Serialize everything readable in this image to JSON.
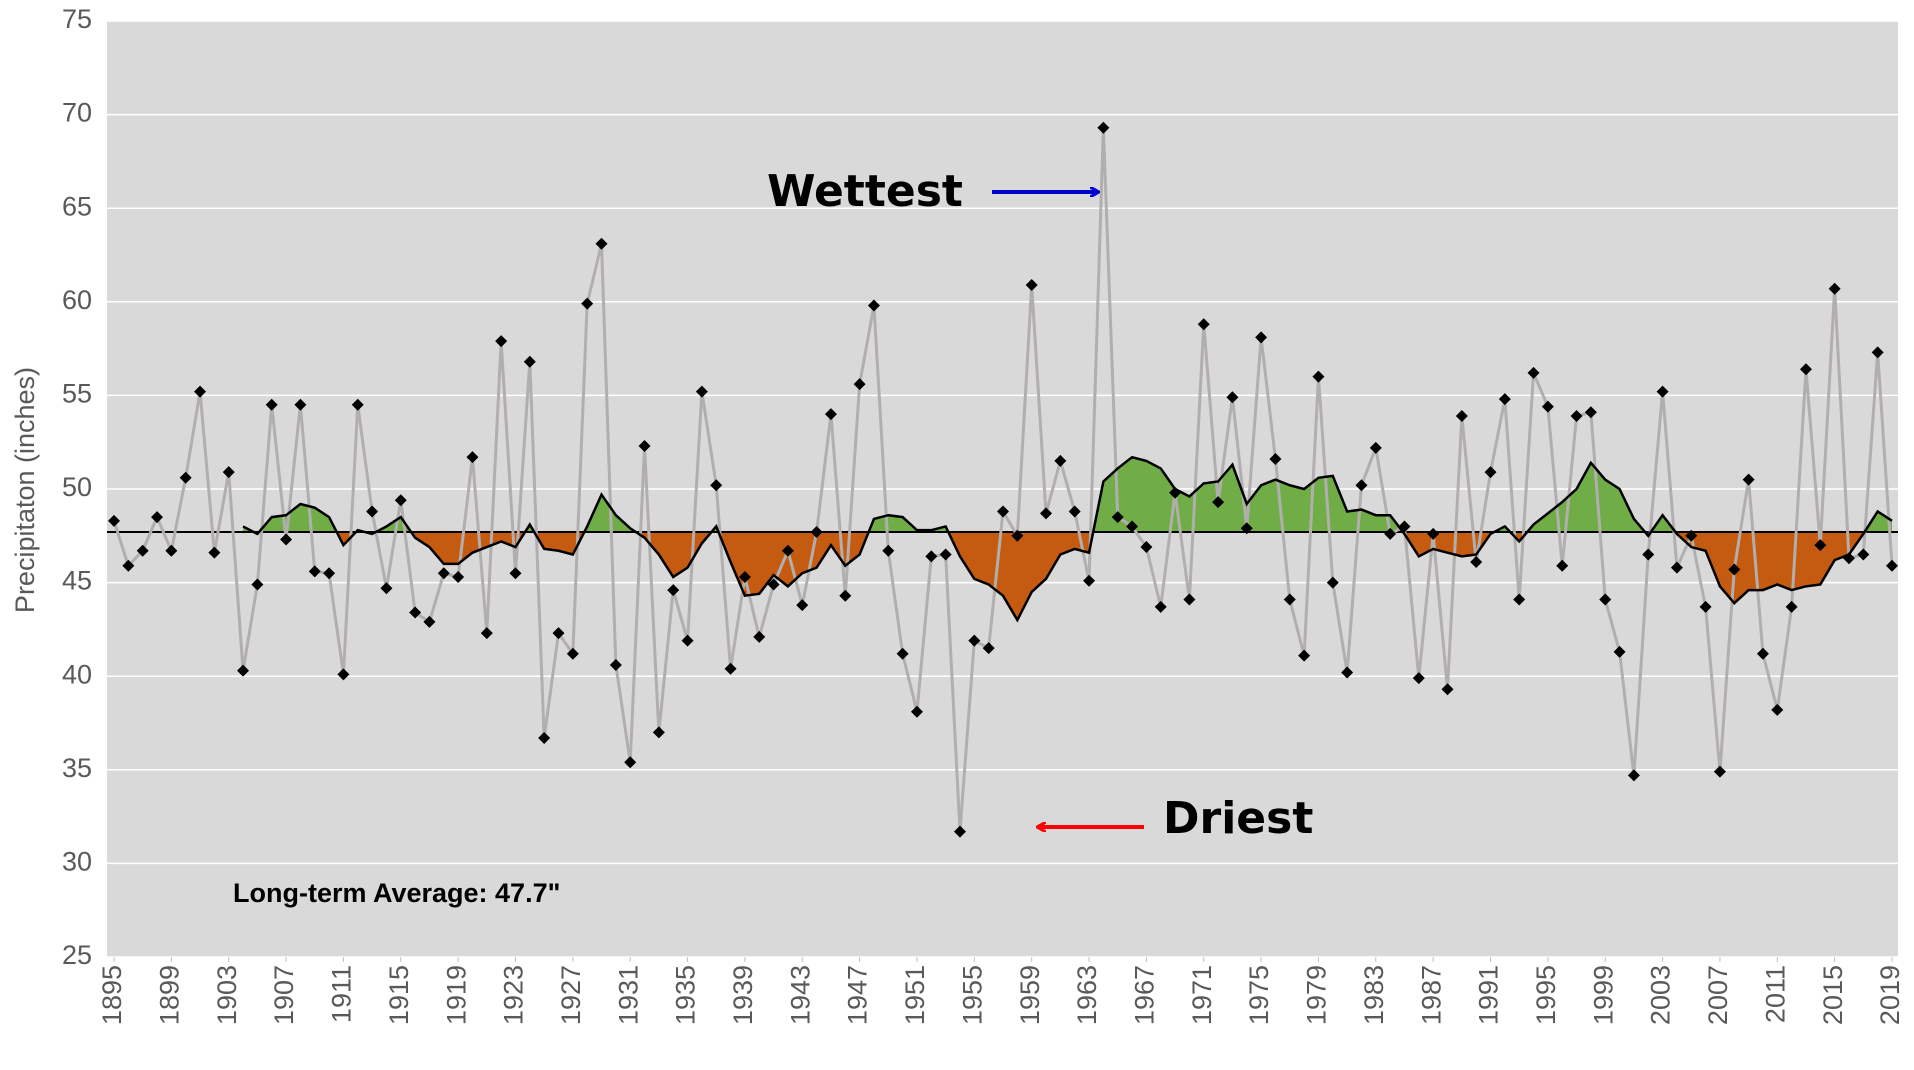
{
  "chart_data": {
    "type": "line",
    "y_label": "Precipitaton (inches)",
    "x": [
      1895,
      1896,
      1897,
      1898,
      1899,
      1900,
      1901,
      1902,
      1903,
      1904,
      1905,
      1906,
      1907,
      1908,
      1909,
      1910,
      1911,
      1912,
      1913,
      1914,
      1915,
      1916,
      1917,
      1918,
      1919,
      1920,
      1921,
      1922,
      1923,
      1924,
      1925,
      1926,
      1927,
      1928,
      1929,
      1930,
      1931,
      1932,
      1933,
      1934,
      1935,
      1936,
      1937,
      1938,
      1939,
      1940,
      1941,
      1942,
      1943,
      1944,
      1945,
      1946,
      1947,
      1948,
      1949,
      1950,
      1951,
      1952,
      1953,
      1954,
      1955,
      1956,
      1957,
      1958,
      1959,
      1960,
      1961,
      1962,
      1963,
      1964,
      1965,
      1966,
      1967,
      1968,
      1969,
      1970,
      1971,
      1972,
      1973,
      1974,
      1975,
      1976,
      1977,
      1978,
      1979,
      1980,
      1981,
      1982,
      1983,
      1984,
      1985,
      1986,
      1987,
      1988,
      1989,
      1990,
      1991,
      1992,
      1993,
      1994,
      1995,
      1996,
      1997,
      1998,
      1999,
      2000,
      2001,
      2002,
      2003,
      2004,
      2005,
      2006,
      2007,
      2008,
      2009,
      2010,
      2011,
      2012,
      2013,
      2014,
      2015,
      2016,
      2017,
      2018,
      2019
    ],
    "series": [
      {
        "color": "#b3aeae",
        "marker_color": "#000000",
        "values": [
          48.3,
          45.9,
          46.7,
          48.5,
          46.7,
          50.6,
          55.2,
          46.6,
          50.9,
          40.3,
          44.9,
          54.5,
          47.3,
          54.5,
          45.6,
          45.5,
          40.1,
          54.5,
          48.8,
          44.7,
          49.4,
          43.4,
          42.9,
          45.5,
          45.3,
          51.7,
          42.3,
          57.9,
          45.5,
          56.8,
          36.7,
          42.3,
          41.2,
          59.9,
          63.1,
          40.6,
          35.4,
          52.3,
          37.0,
          44.6,
          41.9,
          55.2,
          50.2,
          40.4,
          45.3,
          42.1,
          44.9,
          46.7,
          43.8,
          47.7,
          54.0,
          44.3,
          55.6,
          59.8,
          46.7,
          41.2,
          38.1,
          46.4,
          46.5,
          31.7,
          41.9,
          41.5,
          48.8,
          47.5,
          60.9,
          48.7,
          51.5,
          48.8,
          45.1,
          69.3,
          48.5,
          48.0,
          46.9,
          43.7,
          49.8,
          44.1,
          58.8,
          49.3,
          54.9,
          47.9,
          58.1,
          51.6,
          44.1,
          41.1,
          56.0,
          45.0,
          40.2,
          50.2,
          52.2,
          47.6,
          48.0,
          39.9,
          47.6,
          39.3,
          53.9,
          46.1,
          50.9,
          54.8,
          44.1,
          56.2,
          54.4,
          45.9,
          53.9,
          54.1,
          44.1,
          41.3,
          34.7,
          46.5,
          55.2,
          45.8,
          47.5,
          43.7,
          34.9,
          45.7,
          50.5,
          41.2,
          38.2,
          43.7,
          56.4,
          47.0,
          60.7,
          46.3,
          46.5,
          57.3,
          45.9
        ]
      },
      {
        "color": "#000000",
        "values": [
          null,
          null,
          null,
          null,
          null,
          null,
          null,
          null,
          null,
          48.0,
          47.6,
          48.5,
          48.6,
          49.2,
          49.0,
          48.5,
          47.0,
          47.8,
          47.6,
          48.0,
          48.5,
          47.4,
          46.9,
          46.0,
          46.0,
          46.6,
          46.9,
          47.2,
          46.9,
          48.1,
          46.8,
          46.7,
          46.5,
          48.0,
          49.7,
          48.6,
          47.9,
          47.4,
          46.5,
          45.3,
          45.8,
          47.1,
          48.0,
          46.1,
          44.3,
          44.4,
          45.4,
          44.8,
          45.5,
          45.8,
          47.0,
          45.9,
          46.5,
          48.4,
          48.6,
          48.5,
          47.8,
          47.8,
          48.0,
          46.4,
          45.2,
          44.9,
          44.3,
          43.0,
          44.5,
          45.2,
          46.5,
          46.8,
          46.6,
          50.4,
          51.1,
          51.7,
          51.5,
          51.1,
          50.0,
          49.6,
          50.3,
          50.4,
          51.3,
          49.2,
          50.2,
          50.5,
          50.2,
          50.0,
          50.6,
          50.7,
          48.8,
          48.9,
          48.6,
          48.6,
          47.6,
          46.4,
          46.8,
          46.6,
          46.4,
          46.5,
          47.6,
          48.0,
          47.2,
          48.1,
          48.7,
          49.3,
          50.0,
          51.4,
          50.5,
          50.0,
          48.4,
          47.5,
          48.6,
          47.6,
          46.9,
          46.7,
          44.8,
          43.9,
          44.6,
          44.6,
          44.9,
          44.6,
          44.8,
          44.9,
          46.2,
          46.5,
          47.6,
          48.8,
          48.3
        ]
      }
    ],
    "average": 47.7,
    "average_color": "#000000",
    "above_color": "#70ad47",
    "below_color": "#c55a11",
    "average_label": "Long-term Average: 47.7\"",
    "annotations": [
      "Wettest",
      "Driest"
    ],
    "xlim": [
      1895,
      2019
    ],
    "xticks": [
      1895,
      1899,
      1903,
      1907,
      1911,
      1915,
      1919,
      1923,
      1927,
      1931,
      1935,
      1939,
      1943,
      1947,
      1951,
      1955,
      1959,
      1963,
      1967,
      1971,
      1975,
      1979,
      1983,
      1987,
      1991,
      1995,
      1999,
      2003,
      2007,
      2011,
      2015,
      2019
    ],
    "ylim": [
      25,
      75
    ],
    "yticks": [
      25,
      30,
      35,
      40,
      45,
      50,
      55,
      60,
      65,
      70,
      75
    ],
    "grid": true
  }
}
